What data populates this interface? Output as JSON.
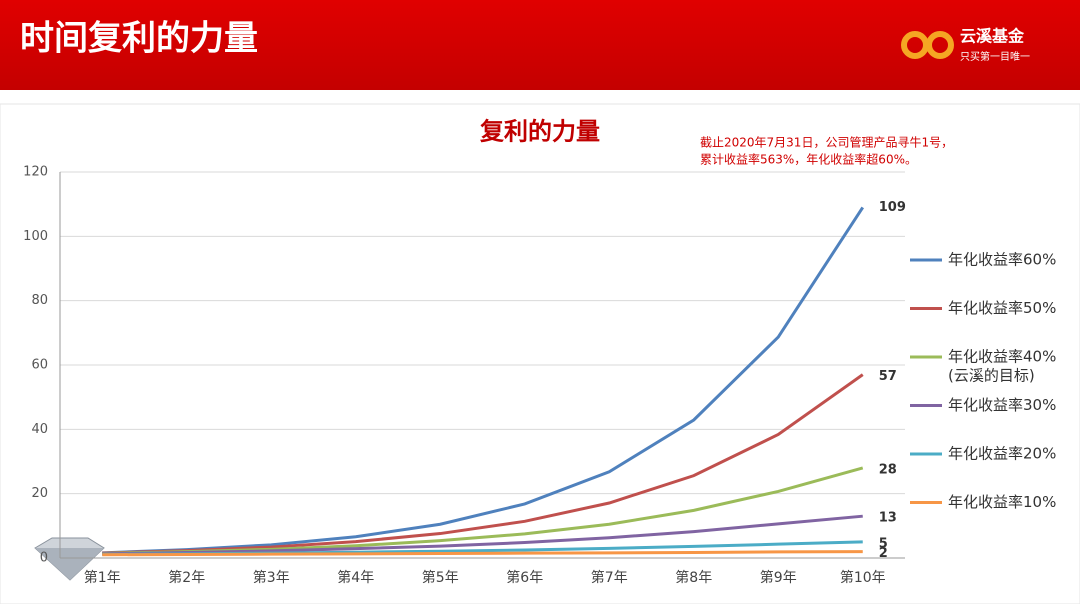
{
  "header": {
    "title": "时间复利的力量",
    "logo": {
      "name": "云溪基金",
      "slogan": "只买第一目唯一"
    }
  },
  "chart_data": {
    "type": "line",
    "title": "复利的力量",
    "annotation": [
      "截止2020年7月31日，公司管理产品寻牛1号，",
      "累计收益率563%，年化收益率超60%。"
    ],
    "categories": [
      "第1年",
      "第2年",
      "第3年",
      "第4年",
      "第5年",
      "第6年",
      "第7年",
      "第8年",
      "第9年",
      "第10年"
    ],
    "series": [
      {
        "name": "年化收益率60%",
        "color": "#4f81bd",
        "values": [
          1.6,
          2.6,
          4.1,
          6.6,
          10.5,
          16.8,
          26.8,
          42.9,
          68.7,
          109
        ]
      },
      {
        "name": "年化收益率50%",
        "color": "#c0504d",
        "values": [
          1.5,
          2.3,
          3.4,
          5.1,
          7.6,
          11.4,
          17.1,
          25.6,
          38.4,
          57
        ]
      },
      {
        "name": "年化收益率40%",
        "note": "(云溪的目标)",
        "color": "#9bbb59",
        "values": [
          1.4,
          2.0,
          2.7,
          3.8,
          5.4,
          7.5,
          10.5,
          14.8,
          20.7,
          28
        ]
      },
      {
        "name": "年化收益率30%",
        "color": "#8064a2",
        "values": [
          1.3,
          1.7,
          2.2,
          2.9,
          3.7,
          4.8,
          6.3,
          8.2,
          10.6,
          13
        ]
      },
      {
        "name": "年化收益率20%",
        "color": "#4bacc6",
        "values": [
          1.1,
          1.3,
          1.5,
          1.8,
          2.1,
          2.5,
          3.0,
          3.6,
          4.3,
          5
        ]
      },
      {
        "name": "年化收益率10%",
        "color": "#f79646",
        "values": [
          1.0,
          1.1,
          1.2,
          1.3,
          1.4,
          1.5,
          1.6,
          1.7,
          1.9,
          2
        ]
      }
    ],
    "ylim": [
      0,
      120
    ],
    "yticks": [
      0,
      20,
      40,
      60,
      80,
      100,
      120
    ],
    "grid": true
  }
}
